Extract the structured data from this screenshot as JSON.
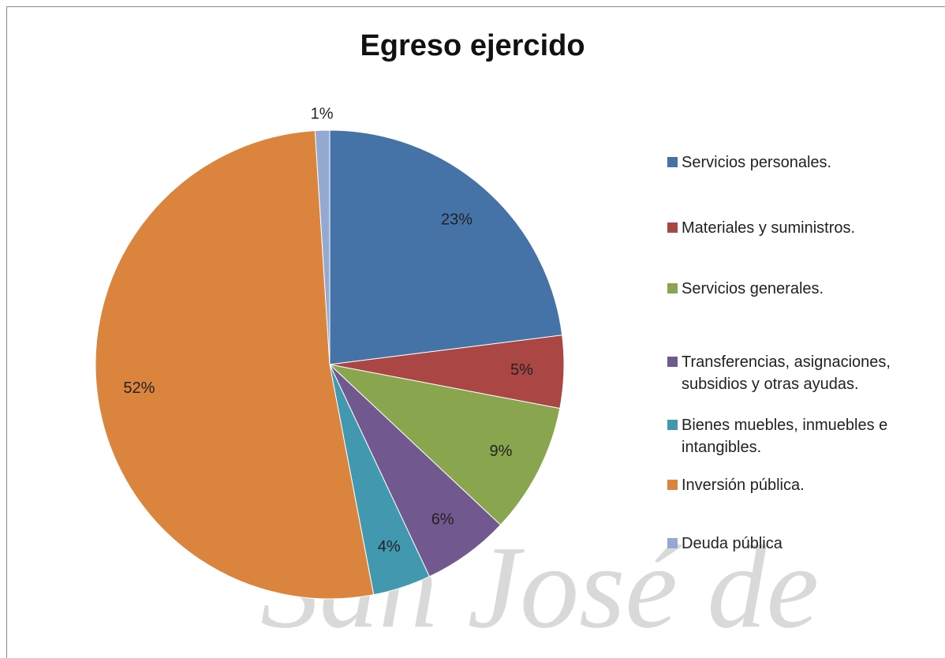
{
  "chart_data": {
    "type": "pie",
    "title": "Egreso ejercido",
    "categories": [
      "Servicios personales.",
      "Materiales y suministros.",
      "Servicios generales.",
      "Transferencias, asignaciones, subsidios y otras ayudas.",
      "Bienes muebles, inmuebles e intangibles.",
      "Inversión pública.",
      "Deuda pública"
    ],
    "values": [
      23,
      5,
      9,
      6,
      4,
      52,
      1
    ],
    "value_labels": [
      "23%",
      "5%",
      "9%",
      "6%",
      "4%",
      "52%",
      "1%"
    ],
    "colors": [
      "#4572a7",
      "#aa4643",
      "#89a54e",
      "#71588f",
      "#4198af",
      "#db843d",
      "#93a9cf"
    ],
    "legend": "right",
    "watermark": "San José de"
  }
}
